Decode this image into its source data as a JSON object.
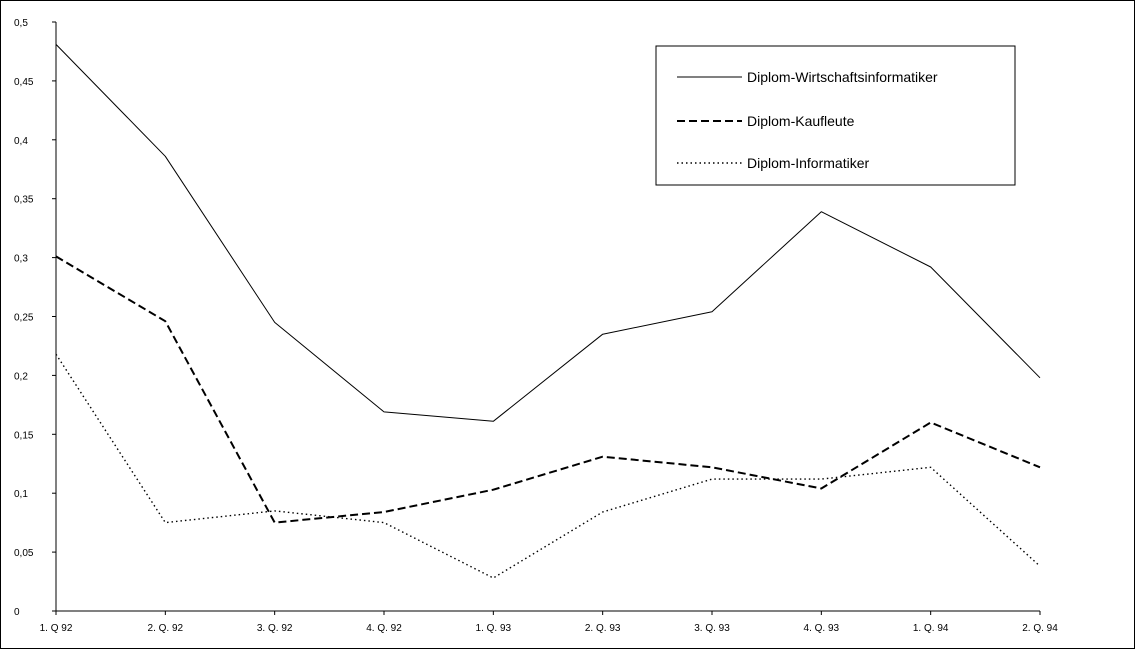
{
  "chart_data": {
    "type": "line",
    "title": "",
    "xlabel": "",
    "ylabel": "",
    "categories": [
      "1. Q 92",
      "2. Q. 92",
      "3. Q. 92",
      "4. Q. 92",
      "1. Q. 93",
      "2. Q. 93",
      "3. Q. 93",
      "4. Q. 93",
      "1. Q. 94",
      "2. Q. 94"
    ],
    "yticks": [
      "0",
      "0,05",
      "0,1",
      "0,15",
      "0,2",
      "0,25",
      "0,3",
      "0,35",
      "0,4",
      "0,45",
      "0,5"
    ],
    "ylim": [
      0,
      0.5
    ],
    "grid": false,
    "legend_position": "top-right",
    "series": [
      {
        "name": "Diplom-Wirtschaftsinformatiker",
        "style": "solid",
        "color": "#000000",
        "values": [
          0.481,
          0.386,
          0.245,
          0.169,
          0.161,
          0.235,
          0.254,
          0.339,
          0.292,
          0.198
        ]
      },
      {
        "name": "Diplom-Kaufleute",
        "style": "dashed",
        "color": "#000000",
        "values": [
          0.301,
          0.246,
          0.075,
          0.084,
          0.103,
          0.131,
          0.122,
          0.104,
          0.16,
          0.122
        ]
      },
      {
        "name": "Diplom-Informatiker",
        "style": "dotted",
        "color": "#000000",
        "values": [
          0.218,
          0.075,
          0.085,
          0.075,
          0.028,
          0.084,
          0.112,
          0.112,
          0.122,
          0.038
        ]
      }
    ]
  }
}
